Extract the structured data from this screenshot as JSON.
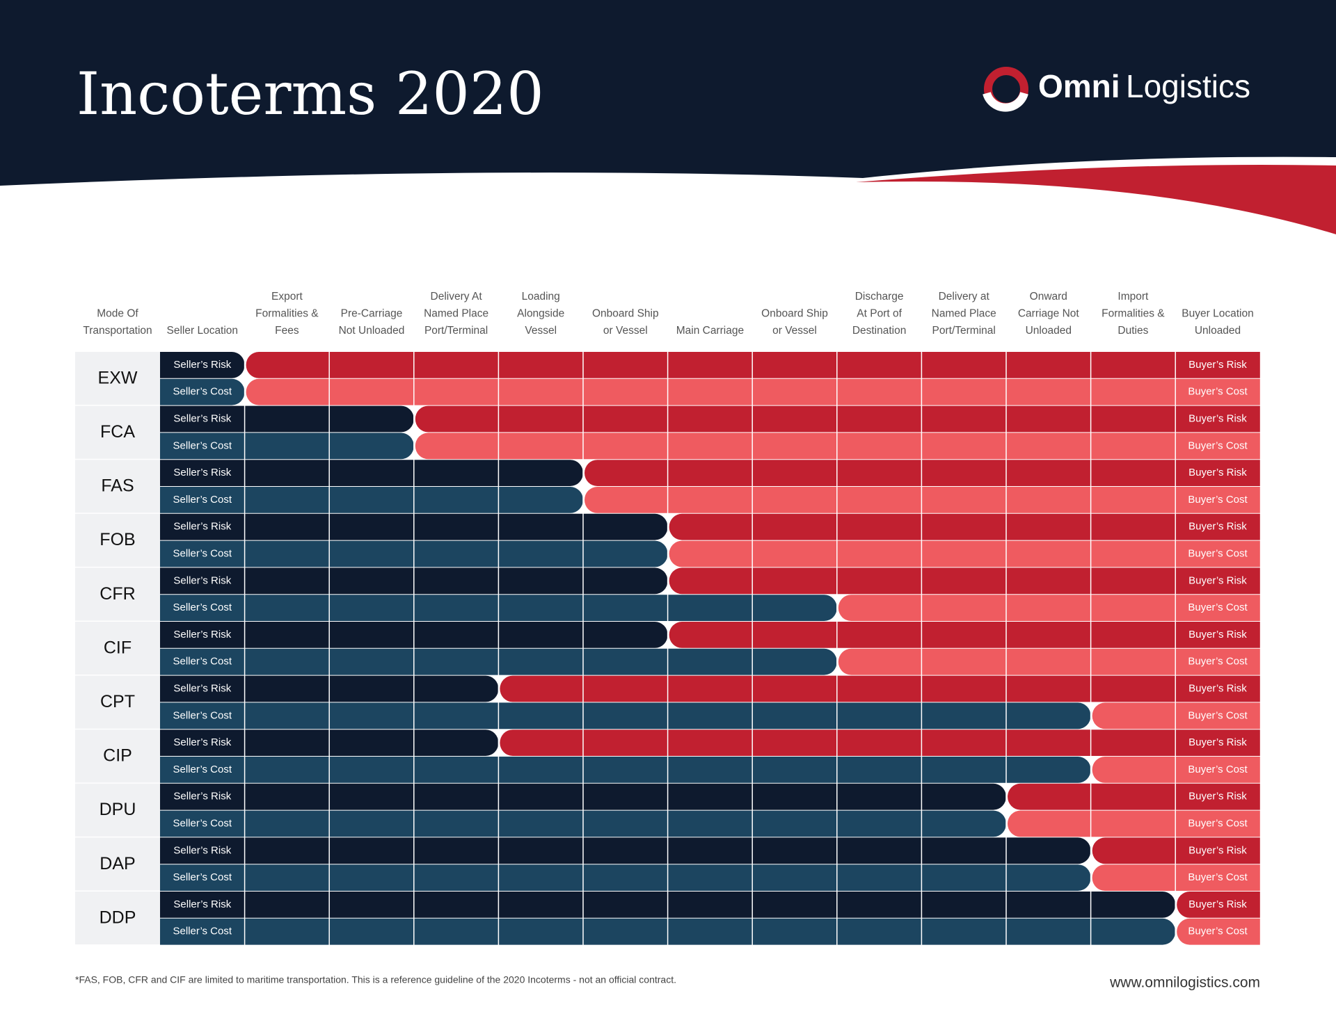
{
  "header": {
    "title": "Incoterms 2020",
    "logo": {
      "bold": "Omni",
      "light": "Logistics"
    }
  },
  "table": {
    "columns": [
      [
        "Mode Of",
        "Transportation"
      ],
      [
        "Seller Location"
      ],
      [
        "Export",
        "Formalities &",
        "Fees"
      ],
      [
        "Pre-Carriage",
        "Not Unloaded"
      ],
      [
        "Delivery At",
        "Named Place",
        "Port/Terminal"
      ],
      [
        "Loading",
        "Alongside",
        "Vessel"
      ],
      [
        "Onboard Ship",
        "or Vessel"
      ],
      [
        "Main Carriage"
      ],
      [
        "Onboard Ship",
        "or Vessel"
      ],
      [
        "Discharge",
        "At Port of",
        "Destination"
      ],
      [
        "Delivery at",
        "Named Place",
        "Port/Terminal"
      ],
      [
        "Onward",
        "Carriage Not",
        "Unloaded"
      ],
      [
        "Import",
        "Formalities &",
        "Duties"
      ],
      [
        "Buyer Location",
        "Unloaded"
      ]
    ],
    "rows": [
      {
        "term": "EXW",
        "risk": {
          "seller": "Seller’s Risk",
          "buyer": "Buyer’s Risk",
          "seller_columns": 1
        },
        "cost": {
          "seller": "Seller’s Cost",
          "buyer": "Buyer’s Cost",
          "seller_columns": 1
        }
      },
      {
        "term": "FCA",
        "risk": {
          "seller": "Seller’s Risk",
          "buyer": "Buyer’s Risk",
          "seller_columns": 3
        },
        "cost": {
          "seller": "Seller’s Cost",
          "buyer": "Buyer’s Cost",
          "seller_columns": 3
        }
      },
      {
        "term": "FAS",
        "risk": {
          "seller": "Seller’s Risk",
          "buyer": "Buyer’s Risk",
          "seller_columns": 5
        },
        "cost": {
          "seller": "Seller’s Cost",
          "buyer": "Buyer’s Cost",
          "seller_columns": 5
        }
      },
      {
        "term": "FOB",
        "risk": {
          "seller": "Seller’s Risk",
          "buyer": "Buyer’s Risk",
          "seller_columns": 6
        },
        "cost": {
          "seller": "Seller’s Cost",
          "buyer": "Buyer’s Cost",
          "seller_columns": 6
        }
      },
      {
        "term": "CFR",
        "risk": {
          "seller": "Seller’s Risk",
          "buyer": "Buyer’s Risk",
          "seller_columns": 6
        },
        "cost": {
          "seller": "Seller’s Cost",
          "buyer": "Buyer’s Cost",
          "seller_columns": 8
        }
      },
      {
        "term": "CIF",
        "risk": {
          "seller": "Seller’s Risk",
          "buyer": "Buyer’s Risk",
          "seller_columns": 6
        },
        "cost": {
          "seller": "Seller’s Cost",
          "buyer": "Buyer’s Cost",
          "seller_columns": 8
        }
      },
      {
        "term": "CPT",
        "risk": {
          "seller": "Seller’s Risk",
          "buyer": "Buyer’s Risk",
          "seller_columns": 4
        },
        "cost": {
          "seller": "Seller’s Cost",
          "buyer": "Buyer’s Cost",
          "seller_columns": 11
        }
      },
      {
        "term": "CIP",
        "risk": {
          "seller": "Seller’s Risk",
          "buyer": "Buyer’s Risk",
          "seller_columns": 4
        },
        "cost": {
          "seller": "Seller’s Cost",
          "buyer": "Buyer’s Cost",
          "seller_columns": 11
        }
      },
      {
        "term": "DPU",
        "risk": {
          "seller": "Seller’s Risk",
          "buyer": "Buyer’s Risk",
          "seller_columns": 10
        },
        "cost": {
          "seller": "Seller’s Cost",
          "buyer": "Buyer’s Cost",
          "seller_columns": 10
        }
      },
      {
        "term": "DAP",
        "risk": {
          "seller": "Seller’s Risk",
          "buyer": "Buyer’s Risk",
          "seller_columns": 11
        },
        "cost": {
          "seller": "Seller’s Cost",
          "buyer": "Buyer’s Cost",
          "seller_columns": 11
        }
      },
      {
        "term": "DDP",
        "risk": {
          "seller": "Seller’s Risk",
          "buyer": "Buyer’s Risk",
          "seller_columns": 12
        },
        "cost": {
          "seller": "Seller’s Cost",
          "buyer": "Buyer’s Cost",
          "seller_columns": 12
        }
      }
    ]
  },
  "footer": {
    "note": "*FAS, FOB, CFR and CIF are limited to maritime transportation. This is a reference guideline of the 2020 Incoterms - not an official contract.",
    "website": "www.omnilogistics.com"
  }
}
